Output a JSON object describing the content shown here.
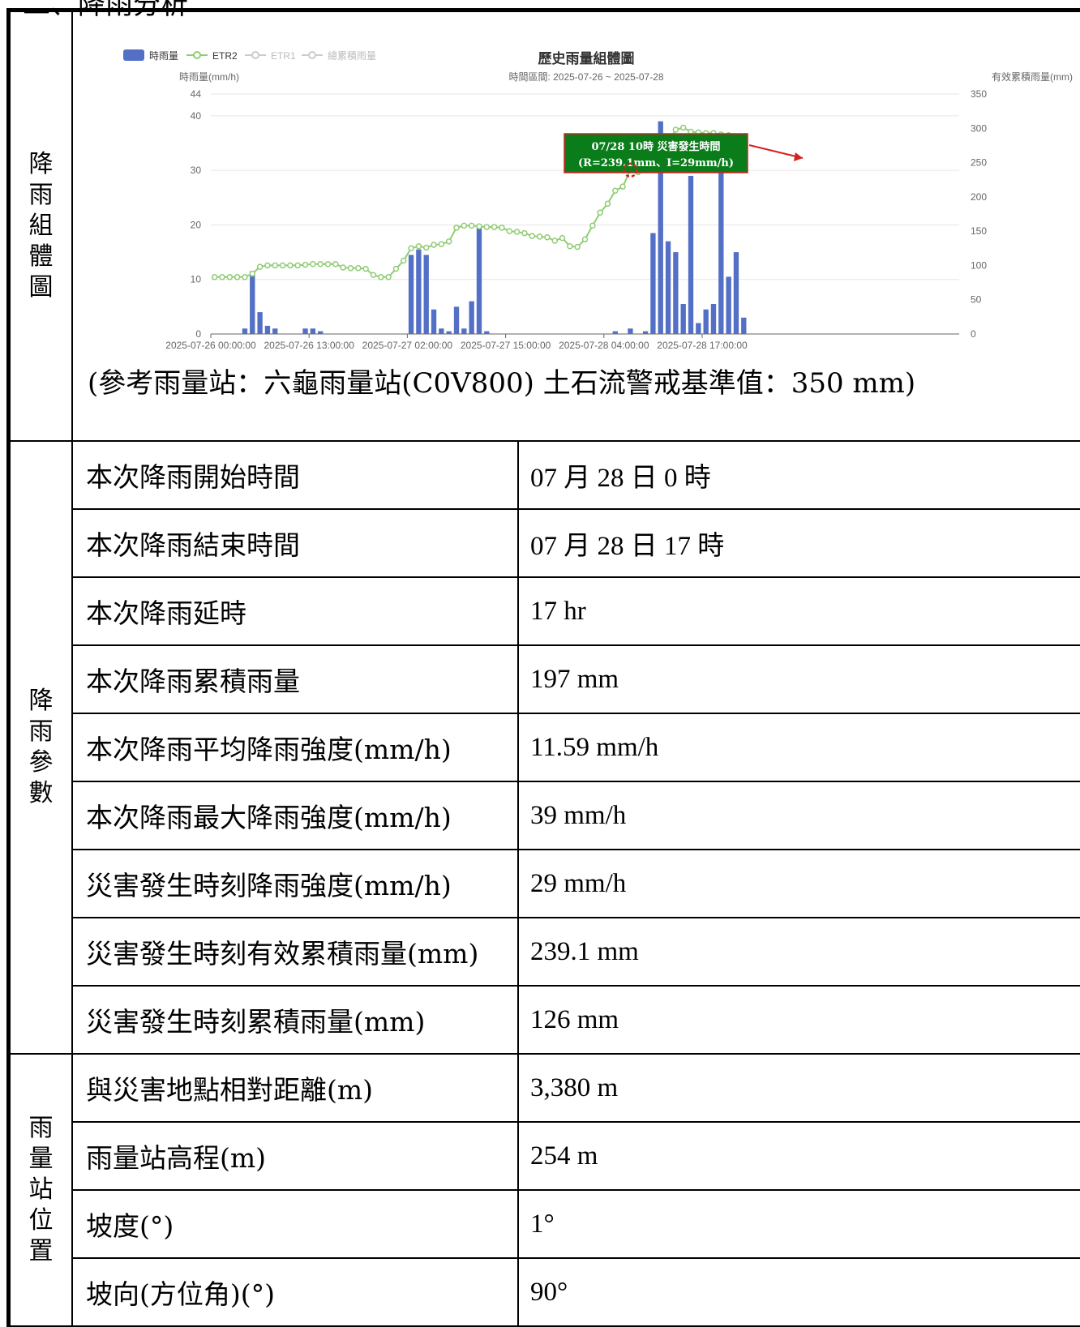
{
  "header_fragment": "二、降雨分析",
  "sections": {
    "chart_label": [
      "降",
      "雨",
      "組",
      "體",
      "圖"
    ],
    "params_label": [
      "降",
      "雨",
      "參",
      "數"
    ],
    "station_label": [
      "雨",
      "量",
      "站",
      "位",
      "置"
    ]
  },
  "chart": {
    "legend": {
      "hourly": "時雨量",
      "etr2": "ETR2",
      "etr1": "ETR1",
      "total": "總累積雨量"
    },
    "title": "歷史雨量組體圖",
    "subtitle": "時間區間: 2025-07-26 ~ 2025-07-28",
    "left_axis_label": "時雨量(mm/h)",
    "right_axis_label": "有效累積雨量(mm)",
    "annotation_line1": "07/28 10時 災害發生時間",
    "annotation_line2": "(R=239.1mm、I=29mm/h)",
    "caption": "(參考雨量站：六龜雨量站(C0V800) 土石流警戒基準值：350 mm)",
    "colors": {
      "bar": "#5470c6",
      "line": "#91cc75",
      "annotation_bg": "#0a7d1a",
      "annotation_border": "#d62020",
      "marker": "#d62020"
    }
  },
  "chart_data": {
    "type": "bar",
    "title": "歷史雨量組體圖",
    "subtitle": "時間區間: 2025-07-26 ~ 2025-07-28",
    "ylabel": "時雨量(mm/h)",
    "y2label": "有效累積雨量(mm)",
    "ylim": [
      0,
      44
    ],
    "y2lim": [
      0,
      350
    ],
    "y_ticks": [
      "0",
      "10",
      "20",
      "30",
      "40",
      "44"
    ],
    "y2_ticks": [
      "0",
      "50",
      "100",
      "150",
      "200",
      "250",
      "300",
      "350"
    ],
    "x_tick_labels": [
      "2025-07-26 00:00:00",
      "2025-07-26 13:00:00",
      "2025-07-27 02:00:00",
      "2025-07-27 15:00:00",
      "2025-07-28 04:00:00",
      "2025-07-28 17:00:00"
    ],
    "series": [
      {
        "name": "時雨量",
        "type": "bar",
        "axis": "left",
        "values": [
          0,
          0,
          0,
          0,
          1,
          11.5,
          4,
          1.5,
          1,
          0,
          0,
          0,
          1,
          1,
          0.5,
          0,
          0,
          0,
          0,
          0,
          0,
          0,
          0,
          0,
          0,
          0,
          14.5,
          15.5,
          14.5,
          4.5,
          1,
          0.5,
          5,
          1,
          6,
          19.5,
          0.5,
          0,
          0,
          0,
          0,
          0,
          0,
          0,
          0,
          0,
          0,
          0,
          0,
          0,
          0,
          0,
          0,
          0.5,
          0,
          1,
          0,
          0.5,
          18.5,
          39,
          17,
          15,
          5.5,
          29,
          2,
          4.5,
          5.5,
          30.5,
          10.5,
          15,
          3,
          0,
          0,
          0,
          0,
          0,
          0,
          0,
          0,
          0,
          0,
          0,
          0,
          0,
          0,
          0,
          0,
          0,
          0,
          0,
          0,
          0,
          0,
          0,
          0,
          0,
          0,
          0,
          0
        ]
      },
      {
        "name": "ETR2",
        "type": "line",
        "axis": "right",
        "values": [
          83,
          83,
          83,
          83,
          83,
          88,
          98,
          100,
          100,
          100,
          100,
          100,
          101,
          102,
          102,
          102,
          102,
          97,
          96,
          96,
          95,
          86,
          83,
          83,
          95,
          107,
          125,
          128,
          126,
          130,
          131,
          135,
          155,
          158,
          158,
          157,
          156,
          156,
          155,
          150,
          149,
          147,
          143,
          142,
          141,
          136,
          140,
          128,
          127,
          138,
          158,
          177,
          190,
          209,
          215,
          239.1,
          236,
          240,
          243,
          260,
          280,
          298,
          301,
          295,
          294,
          293,
          293,
          291,
          290,
          288
        ]
      }
    ],
    "annotation": {
      "label": "07/28 10時 災害發生時間",
      "detail": "(R=239.1mm、I=29mm/h)",
      "x": "2025-07-28 10:00:00",
      "y2": 239.1,
      "intensity": 29
    }
  },
  "params": [
    {
      "label": "本次降雨開始時間",
      "value": "07 月 28 日 0 時"
    },
    {
      "label": "本次降雨結束時間",
      "value": "07 月 28 日 17 時"
    },
    {
      "label": "本次降雨延時",
      "value": "17 hr"
    },
    {
      "label": "本次降雨累積雨量",
      "value": "197 mm"
    },
    {
      "label": "本次降雨平均降雨強度(mm/h)",
      "value": "11.59 mm/h"
    },
    {
      "label": "本次降雨最大降雨強度(mm/h)",
      "value": "39 mm/h"
    },
    {
      "label": "災害發生時刻降雨強度(mm/h)",
      "value": "29 mm/h"
    },
    {
      "label": "災害發生時刻有效累積雨量(mm)",
      "value": "239.1 mm"
    },
    {
      "label": "災害發生時刻累積雨量(mm)",
      "value": "126 mm"
    }
  ],
  "station": [
    {
      "label": "與災害地點相對距離(m)",
      "value": "3,380 m"
    },
    {
      "label": "雨量站高程(m)",
      "value": "254 m"
    },
    {
      "label": "坡度(°)",
      "value": "1°"
    },
    {
      "label": "坡向(方位角)(°)",
      "value": "90°"
    }
  ]
}
